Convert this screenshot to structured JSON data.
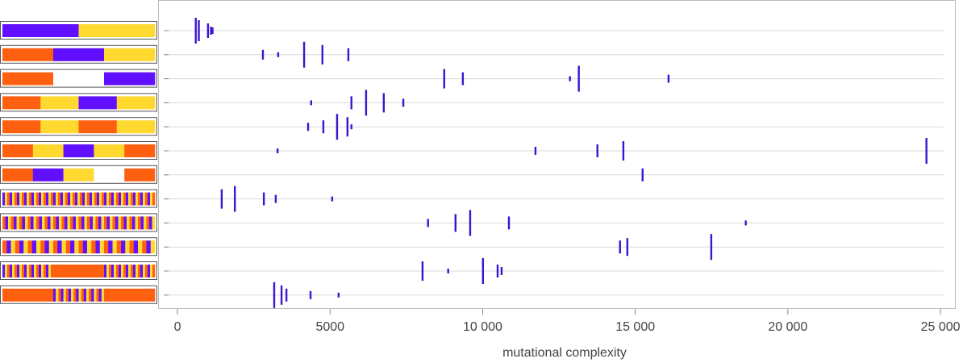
{
  "chart_data": {
    "type": "strip",
    "xlabel": "mutational complexity",
    "xlim": [
      -450,
      25500
    ],
    "xticks": [
      0,
      5000,
      {
        "value": 10000,
        "label": "10 000"
      },
      {
        "value": 15000,
        "label": "15 000"
      },
      {
        "value": 20000,
        "label": "20 000"
      },
      {
        "value": 25000,
        "label": "25 000"
      }
    ],
    "color": "#3c14d2",
    "grid": true,
    "categories": [
      null,
      null,
      null,
      null,
      null,
      null,
      null,
      null,
      null,
      null,
      null,
      null
    ],
    "rows": [
      {
        "x": [
          600,
          700,
          1000,
          1100,
          1150
        ],
        "sizes": [
          32,
          26,
          18,
          10,
          8
        ]
      },
      {
        "x": [
          2800,
          3300,
          4150,
          4750,
          5600
        ],
        "sizes": [
          12,
          6,
          32,
          24,
          16
        ]
      },
      {
        "x": [
          8740,
          9350,
          12860,
          13150,
          16090
        ],
        "sizes": [
          24,
          16,
          6,
          32,
          10
        ]
      },
      {
        "x": [
          4380,
          5700,
          6180,
          6760,
          7400
        ],
        "sizes": [
          6,
          16,
          32,
          24,
          10
        ]
      },
      {
        "x": [
          4280,
          4780,
          5230,
          5570,
          5700
        ],
        "sizes": [
          10,
          16,
          32,
          24,
          6
        ]
      },
      {
        "x": [
          3280,
          11730,
          13760,
          14610,
          24540
        ],
        "sizes": [
          6,
          10,
          16,
          24,
          32
        ]
      },
      {
        "x": [
          15240
        ],
        "sizes": [
          16
        ]
      },
      {
        "x": [
          1450,
          1880,
          2830,
          3220,
          5070
        ],
        "sizes": [
          24,
          32,
          16,
          10,
          6
        ]
      },
      {
        "x": [
          8210,
          9110,
          9590,
          10860,
          18620
        ],
        "sizes": [
          10,
          22,
          32,
          16,
          6
        ]
      },
      {
        "x": [
          14500,
          14740,
          17490
        ],
        "sizes": [
          16,
          22,
          32
        ]
      },
      {
        "x": [
          8030,
          8870,
          10010,
          10490,
          10620
        ],
        "sizes": [
          24,
          6,
          32,
          16,
          10
        ]
      },
      {
        "x": [
          3170,
          3410,
          3570,
          4360,
          5280
        ],
        "sizes": [
          32,
          24,
          16,
          10,
          6
        ]
      }
    ]
  }
}
